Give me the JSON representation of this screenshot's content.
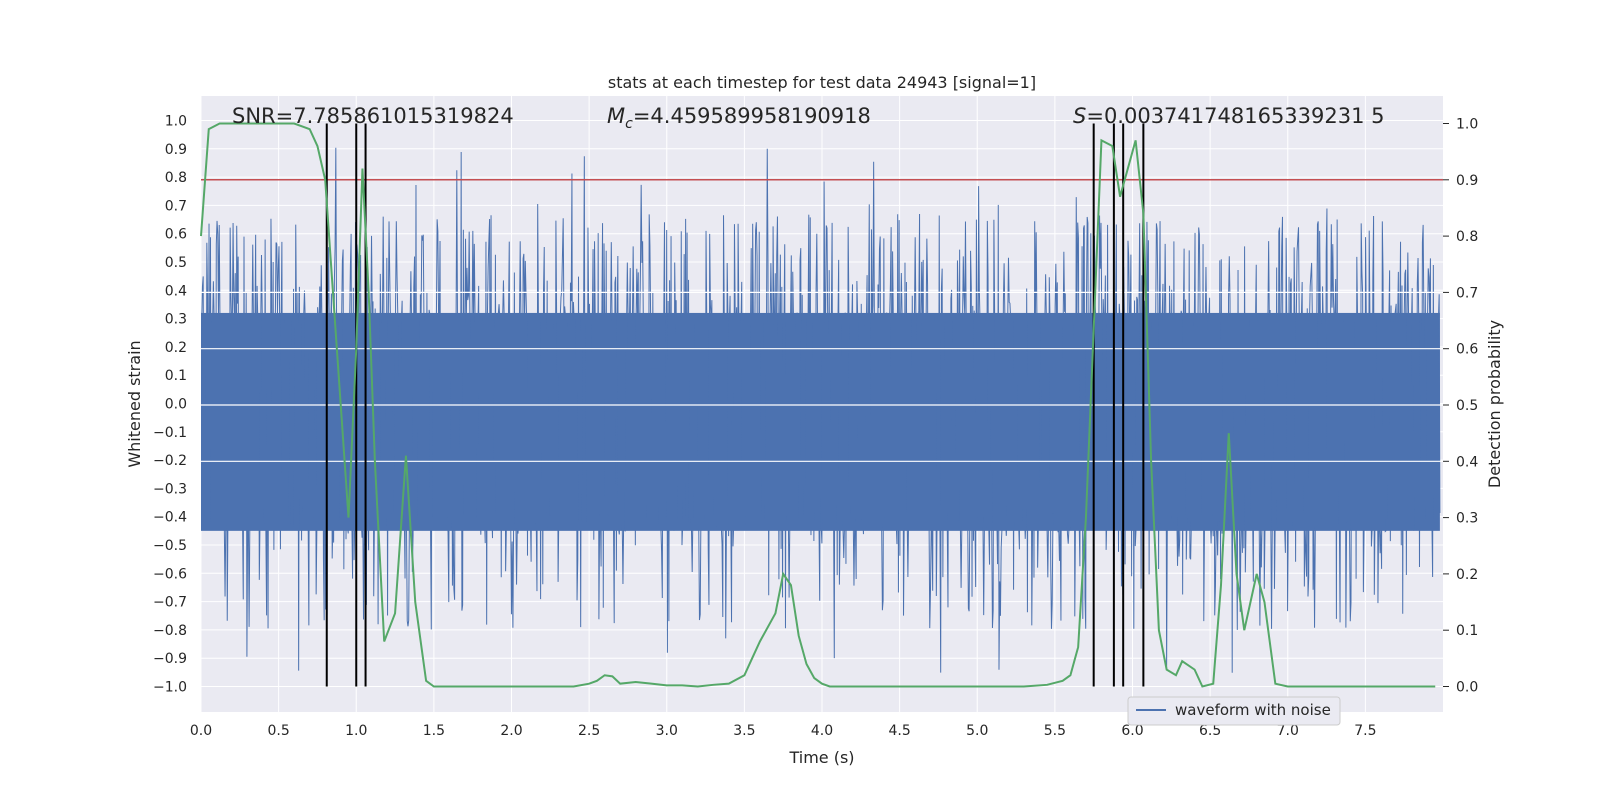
{
  "chart_data": {
    "type": "line",
    "title": "stats at each timestep for test data 24943 [signal=1]",
    "xlabel": "Time (s)",
    "ylabel": "Whitened strain",
    "ylabel_right": "Detection probability",
    "xlim": [
      0.0,
      8.0
    ],
    "ylim": [
      -1.1,
      1.0
    ],
    "ylim_right": [
      -0.05,
      1.05
    ],
    "x_ticks": [
      "0.0",
      "0.5",
      "1.0",
      "1.5",
      "2.0",
      "2.5",
      "3.0",
      "3.5",
      "4.0",
      "4.5",
      "5.0",
      "5.5",
      "6.0",
      "6.5",
      "7.0",
      "7.5"
    ],
    "y_ticks": [
      "1.0",
      "0.9",
      "0.8",
      "0.7",
      "0.6",
      "0.5",
      "0.4",
      "0.3",
      "0.2",
      "0.1",
      "0.0",
      "−0.1",
      "−0.2",
      "−0.3",
      "−0.4",
      "−0.5",
      "−0.6",
      "−0.7",
      "−0.8",
      "−0.9",
      "−1.0"
    ],
    "y_ticks_right": [
      "1.0",
      "0.9",
      "0.8",
      "0.7",
      "0.6",
      "0.5",
      "0.4",
      "0.3",
      "0.2",
      "0.1",
      "0.0"
    ],
    "annotations": {
      "snr": "SNR=7.785861015319824",
      "mc_symbol": "M",
      "mc_subscript": "c",
      "mc_value": "=4.459589958190918",
      "s_symbol": "S",
      "s_value": "=0.003741748165339231 5"
    },
    "legend": {
      "label": "waveform with noise",
      "location": "lower-right"
    },
    "threshold": {
      "value": 0.9,
      "axis": "right",
      "color": "#c44e52"
    },
    "event_lines_x": [
      0.81,
      1.0,
      1.06,
      5.75,
      5.88,
      5.94,
      6.07
    ],
    "series": [
      {
        "name": "waveform with noise",
        "axis": "left",
        "color": "#4c72b0",
        "envelope": {
          "body_min": -0.45,
          "body_max": 0.32,
          "spike_max": 0.92,
          "spike_min": -1.0
        }
      },
      {
        "name": "detection probability",
        "axis": "right",
        "color": "#55a868",
        "x": [
          0.0,
          0.05,
          0.12,
          0.2,
          0.3,
          0.4,
          0.5,
          0.6,
          0.7,
          0.75,
          0.8,
          0.85,
          0.9,
          0.95,
          1.0,
          1.04,
          1.08,
          1.12,
          1.18,
          1.25,
          1.32,
          1.38,
          1.45,
          1.5,
          1.6,
          1.7,
          1.8,
          1.9,
          2.0,
          2.1,
          2.2,
          2.3,
          2.4,
          2.5,
          2.55,
          2.6,
          2.65,
          2.7,
          2.8,
          2.9,
          3.0,
          3.1,
          3.2,
          3.3,
          3.4,
          3.5,
          3.55,
          3.6,
          3.7,
          3.75,
          3.8,
          3.85,
          3.9,
          3.95,
          4.0,
          4.05,
          4.1,
          4.2,
          4.5,
          5.0,
          5.3,
          5.45,
          5.55,
          5.6,
          5.65,
          5.7,
          5.8,
          5.87,
          5.92,
          5.97,
          6.02,
          6.07,
          6.12,
          6.17,
          6.22,
          6.28,
          6.32,
          6.4,
          6.45,
          6.52,
          6.57,
          6.62,
          6.67,
          6.72,
          6.8,
          6.85,
          6.92,
          7.0,
          7.2,
          7.5,
          7.8,
          7.95
        ],
        "y": [
          0.8,
          0.99,
          1.0,
          1.0,
          1.0,
          1.0,
          1.0,
          1.0,
          0.99,
          0.96,
          0.9,
          0.7,
          0.5,
          0.3,
          0.6,
          0.92,
          0.7,
          0.4,
          0.08,
          0.13,
          0.41,
          0.15,
          0.01,
          0.0,
          0.0,
          0.0,
          0.0,
          0.0,
          0.0,
          0.0,
          0.0,
          0.0,
          0.0,
          0.005,
          0.01,
          0.02,
          0.018,
          0.005,
          0.008,
          0.005,
          0.002,
          0.002,
          0.0,
          0.003,
          0.005,
          0.02,
          0.05,
          0.08,
          0.13,
          0.2,
          0.18,
          0.09,
          0.04,
          0.015,
          0.005,
          0.0,
          0.0,
          0.0,
          0.0,
          0.0,
          0.0,
          0.003,
          0.01,
          0.02,
          0.07,
          0.3,
          0.97,
          0.96,
          0.87,
          0.92,
          0.97,
          0.84,
          0.4,
          0.1,
          0.03,
          0.02,
          0.045,
          0.03,
          0.0,
          0.005,
          0.18,
          0.45,
          0.2,
          0.1,
          0.2,
          0.15,
          0.005,
          0.0,
          0.0,
          0.0,
          0.0,
          0.0
        ]
      }
    ]
  }
}
